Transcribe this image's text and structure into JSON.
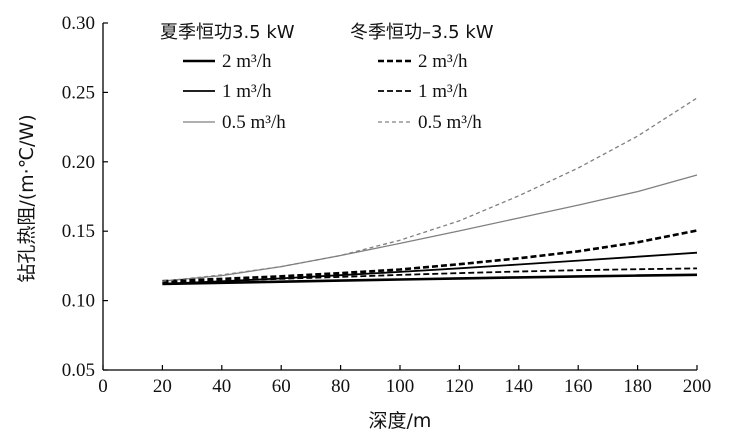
{
  "chart_data": {
    "type": "line",
    "xlabel": "深度/m",
    "ylabel": "钻孔热阻/(m·℃/W)",
    "xlim": [
      0,
      200
    ],
    "ylim": [
      0.05,
      0.3
    ],
    "x_ticks": [
      0,
      20,
      40,
      60,
      80,
      100,
      120,
      140,
      160,
      180,
      200
    ],
    "y_ticks": [
      0.05,
      0.1,
      0.15,
      0.2,
      0.25,
      0.3
    ],
    "y_tick_labels": [
      "0.05",
      "0.10",
      "0.15",
      "0.20",
      "0.25",
      "0.30"
    ],
    "grid": false,
    "legend_position": "top",
    "legend_groups": [
      {
        "heading": "夏季恒功3.5 kW",
        "line_style": "solid"
      },
      {
        "heading": "冬季恒功–3.5 kW",
        "line_style": "dashed"
      }
    ],
    "x": [
      20,
      40,
      60,
      80,
      100,
      120,
      140,
      160,
      180,
      200
    ],
    "series": [
      {
        "name": "2 m³/h",
        "group": "summer",
        "style": "solid",
        "color": "#000000",
        "weight": "thick",
        "values": [
          0.112,
          0.1128,
          0.1136,
          0.1144,
          0.1152,
          0.116,
          0.1167,
          0.1174,
          0.118,
          0.1186
        ]
      },
      {
        "name": "1 m³/h",
        "group": "summer",
        "style": "solid",
        "color": "#000000",
        "weight": "medium",
        "values": [
          0.112,
          0.1139,
          0.116,
          0.1183,
          0.1207,
          0.1233,
          0.126,
          0.1288,
          0.1316,
          0.1345
        ]
      },
      {
        "name": "0.5 m³/h",
        "group": "summer",
        "style": "solid",
        "color": "#808080",
        "weight": "thin",
        "values": [
          0.114,
          0.118,
          0.1245,
          0.1325,
          0.1412,
          0.1502,
          0.1595,
          0.1688,
          0.1785,
          0.1905
        ]
      },
      {
        "name": "2 m³/h",
        "group": "winter",
        "style": "dashed",
        "color": "#000000",
        "weight": "thick",
        "values": [
          0.114,
          0.1156,
          0.1175,
          0.1198,
          0.1224,
          0.1262,
          0.1305,
          0.1355,
          0.142,
          0.1505
        ]
      },
      {
        "name": "1 m³/h",
        "group": "winter",
        "style": "dashed",
        "color": "#000000",
        "weight": "medium",
        "values": [
          0.113,
          0.1143,
          0.1157,
          0.1171,
          0.1185,
          0.1198,
          0.121,
          0.1219,
          0.1226,
          0.1232
        ]
      },
      {
        "name": "0.5 m³/h",
        "group": "winter",
        "style": "dashed",
        "color": "#808080",
        "weight": "thin",
        "values": [
          0.114,
          0.1185,
          0.1245,
          0.1325,
          0.1435,
          0.1575,
          0.1755,
          0.1955,
          0.2185,
          0.246
        ]
      }
    ]
  }
}
